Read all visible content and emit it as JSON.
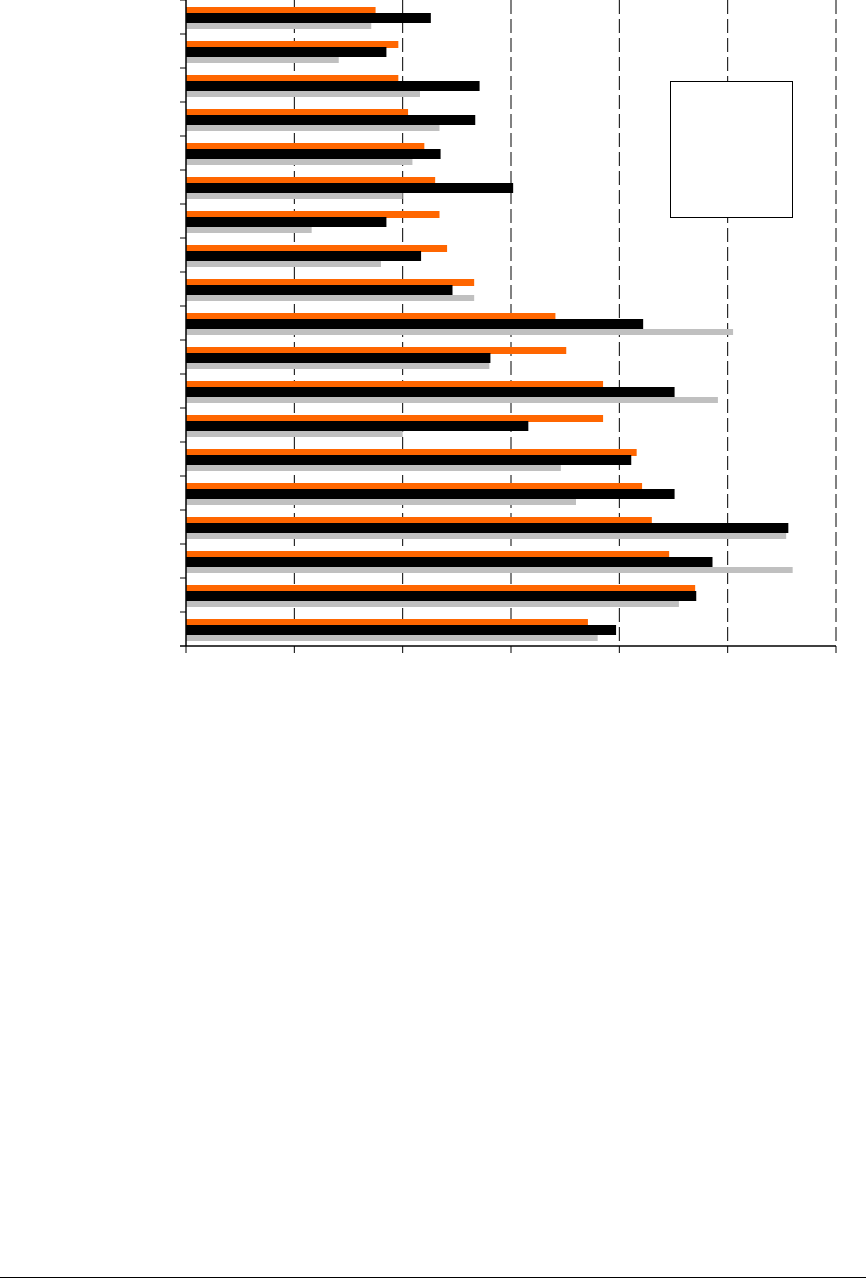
{
  "chart_data": {
    "type": "bar",
    "orientation": "horizontal",
    "title": "",
    "xlabel": "",
    "ylabel": "",
    "xlim": [
      0,
      6
    ],
    "grid": {
      "x": true,
      "y": false,
      "style": "dashed"
    },
    "tick_labels_shown": false,
    "legend": {
      "placement": "top-right",
      "entries": []
    },
    "colors": {
      "series1": "#ff6600",
      "series2": "#000000",
      "series3": "#c0c0c0"
    },
    "series": [
      {
        "values": [
          1.75,
          1.96,
          1.96,
          2.05,
          2.2,
          2.3,
          2.34,
          2.41,
          2.66,
          3.41,
          3.51,
          3.85,
          3.85,
          4.16,
          4.21,
          4.3,
          4.46,
          4.7,
          3.71
        ]
      },
      {
        "values": [
          2.26,
          1.85,
          2.71,
          2.67,
          2.35,
          3.02,
          1.85,
          2.17,
          2.46,
          4.22,
          2.81,
          4.51,
          3.16,
          4.11,
          4.51,
          5.56,
          4.86,
          4.71,
          3.97
        ]
      },
      {
        "values": [
          1.71,
          1.41,
          2.16,
          2.34,
          2.09,
          2.0,
          1.16,
          1.8,
          2.66,
          5.05,
          2.8,
          4.91,
          2.0,
          3.46,
          3.6,
          5.54,
          5.6,
          4.55,
          3.8
        ]
      }
    ]
  }
}
